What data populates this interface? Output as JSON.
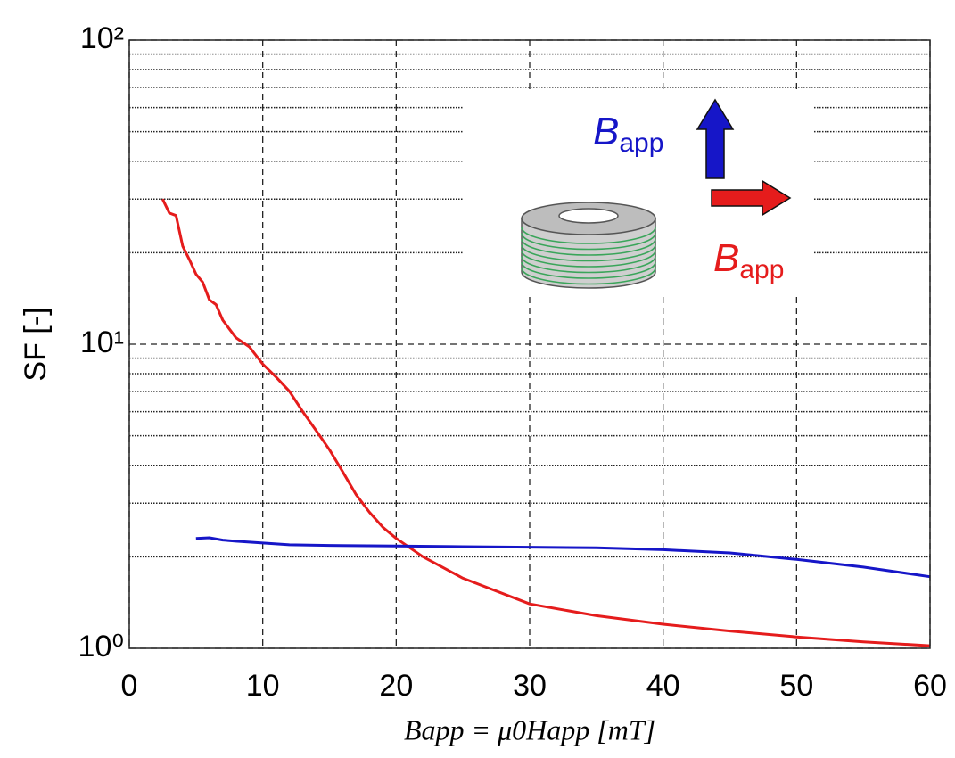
{
  "chart_data": {
    "type": "line",
    "ylabel": "SF [-]",
    "xlabel": "Bapp = μ0Happ [mT]",
    "xlim": [
      0,
      60
    ],
    "xticks": [
      0,
      10,
      20,
      30,
      40,
      50,
      60
    ],
    "ylim": [
      1,
      100
    ],
    "log_y": true,
    "yticks": [
      {
        "value": 1,
        "label": "10⁰"
      },
      {
        "value": 10,
        "label": "10¹"
      },
      {
        "value": 100,
        "label": "10²"
      }
    ],
    "y_minor_grid": [
      2,
      3,
      4,
      5,
      6,
      7,
      8,
      9,
      20,
      30,
      40,
      50,
      60,
      70,
      80,
      90
    ],
    "grid": true,
    "series": [
      {
        "color": "#e51c1c",
        "x": [
          2.5,
          3,
          3.5,
          4,
          4.5,
          5,
          5.5,
          6,
          6.5,
          7,
          8,
          9,
          10,
          11,
          12,
          13,
          14,
          15,
          16,
          17,
          18,
          19,
          20,
          22,
          25,
          30,
          35,
          40,
          45,
          50,
          55,
          60
        ],
        "values": [
          30,
          27,
          26.5,
          21,
          19,
          17,
          16,
          14,
          13.5,
          12,
          10.5,
          9.8,
          8.6,
          7.8,
          7,
          6,
          5.2,
          4.5,
          3.8,
          3.2,
          2.8,
          2.5,
          2.3,
          2.0,
          1.7,
          1.4,
          1.28,
          1.2,
          1.14,
          1.09,
          1.05,
          1.02
        ]
      },
      {
        "color": "#1616c8",
        "x": [
          5,
          6,
          7,
          8,
          10,
          12,
          15,
          20,
          25,
          30,
          35,
          40,
          45,
          50,
          55,
          60
        ],
        "values": [
          2.3,
          2.31,
          2.27,
          2.25,
          2.22,
          2.19,
          2.18,
          2.17,
          2.16,
          2.15,
          2.14,
          2.11,
          2.06,
          1.96,
          1.85,
          1.72
        ]
      }
    ],
    "annotations": [
      {
        "text": "Bapp",
        "color": "#1616c8"
      },
      {
        "text": "Bapp",
        "color": "#e51c1c"
      }
    ]
  }
}
